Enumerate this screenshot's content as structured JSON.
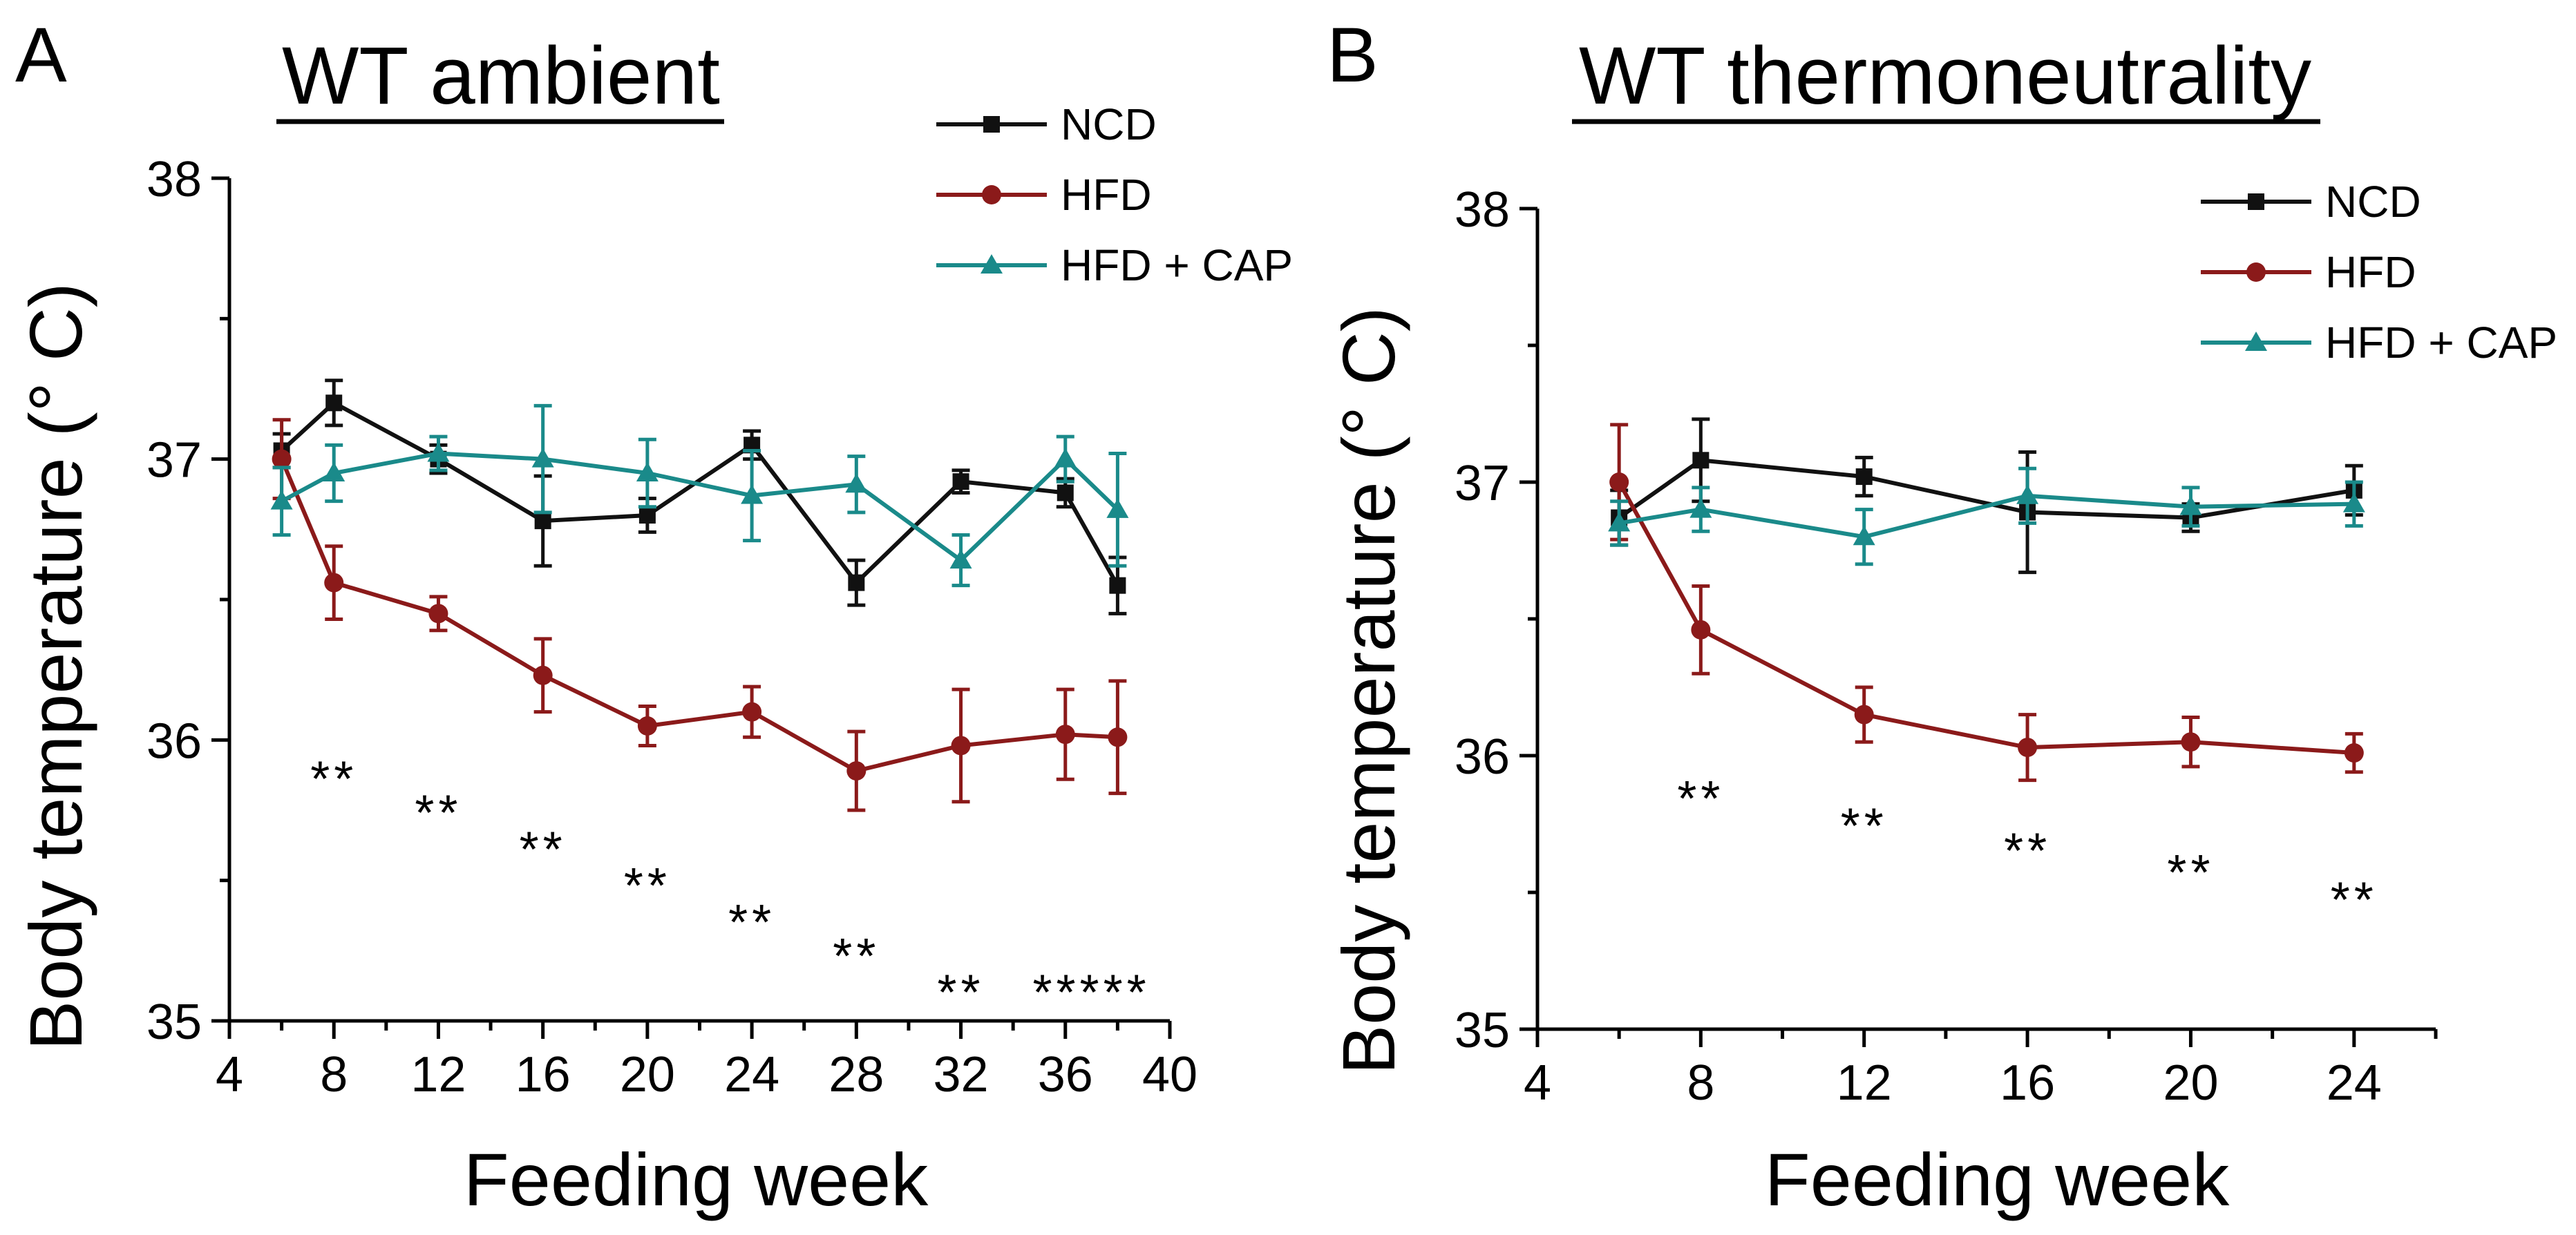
{
  "figure": {
    "panels": [
      {
        "letter": "A",
        "title": "WT ambient",
        "xlabel": "Feeding week",
        "ylabel": "Body temperature (° C)",
        "x_ticks": [
          "4",
          "8",
          "12",
          "16",
          "20",
          "24",
          "28",
          "32",
          "36",
          "40"
        ],
        "y_ticks": [
          "35",
          "36",
          "37",
          "38"
        ]
      },
      {
        "letter": "B",
        "title": "WT thermoneutrality",
        "xlabel": "Feeding week",
        "ylabel": "Body temperature (° C)",
        "x_ticks": [
          "4",
          "8",
          "12",
          "16",
          "20",
          "24"
        ],
        "y_ticks": [
          "35",
          "36",
          "37",
          "38"
        ]
      }
    ],
    "colors": {
      "NCD": "#111111",
      "HFD": "#8b1a1a",
      "HFD + CAP": "#1a8a8a"
    }
  },
  "chart_data": [
    {
      "type": "line",
      "title": "WT ambient",
      "xlabel": "Feeding week",
      "ylabel": "Body temperature (° C)",
      "xlim": [
        4,
        40
      ],
      "ylim": [
        35,
        38
      ],
      "x_ticks": [
        4,
        8,
        12,
        16,
        20,
        24,
        28,
        32,
        36,
        40
      ],
      "y_ticks": [
        35,
        36,
        37,
        38
      ],
      "legend": "top-right",
      "series": [
        {
          "name": "NCD",
          "marker": "square",
          "x": [
            6,
            8,
            12,
            16,
            20,
            24,
            28,
            32,
            36,
            38
          ],
          "values": [
            37.03,
            37.2,
            37.0,
            36.78,
            36.8,
            37.05,
            36.56,
            36.92,
            36.88,
            36.55
          ],
          "errors": [
            0.06,
            0.08,
            0.05,
            0.16,
            0.06,
            0.05,
            0.08,
            0.04,
            0.05,
            0.1
          ]
        },
        {
          "name": "HFD",
          "marker": "circle",
          "x": [
            6,
            8,
            12,
            16,
            20,
            24,
            28,
            32,
            36,
            38
          ],
          "values": [
            37.0,
            36.56,
            36.45,
            36.23,
            36.05,
            36.1,
            35.89,
            35.98,
            36.02,
            36.01
          ],
          "errors": [
            0.14,
            0.13,
            0.06,
            0.13,
            0.07,
            0.09,
            0.14,
            0.2,
            0.16,
            0.2
          ]
        },
        {
          "name": "HFD + CAP",
          "marker": "triangle",
          "x": [
            6,
            8,
            12,
            16,
            20,
            24,
            28,
            32,
            36,
            38
          ],
          "values": [
            36.85,
            36.95,
            37.02,
            37.0,
            36.95,
            36.87,
            36.91,
            36.64,
            37.0,
            36.82
          ],
          "errors": [
            0.12,
            0.1,
            0.06,
            0.19,
            0.12,
            0.16,
            0.1,
            0.09,
            0.08,
            0.2
          ]
        }
      ],
      "annotations": [
        {
          "x": 8,
          "y": 35.8,
          "text": "**"
        },
        {
          "x": 12,
          "y": 35.68,
          "text": "**"
        },
        {
          "x": 16,
          "y": 35.55,
          "text": "**"
        },
        {
          "x": 20,
          "y": 35.42,
          "text": "**"
        },
        {
          "x": 24,
          "y": 35.29,
          "text": "**"
        },
        {
          "x": 28,
          "y": 35.17,
          "text": "**"
        },
        {
          "x": 32,
          "y": 35.04,
          "text": "**"
        },
        {
          "x": 37,
          "y": 35.04,
          "text": "*****"
        }
      ]
    },
    {
      "type": "line",
      "title": "WT thermoneutrality",
      "xlabel": "Feeding week",
      "ylabel": "Body temperature (° C)",
      "xlim": [
        4,
        26
      ],
      "ylim": [
        35,
        38
      ],
      "x_ticks": [
        4,
        8,
        12,
        16,
        20,
        24
      ],
      "y_ticks": [
        35,
        36,
        37,
        38
      ],
      "legend": "top-right",
      "series": [
        {
          "name": "NCD",
          "marker": "square",
          "x": [
            6,
            8,
            12,
            16,
            20,
            24
          ],
          "values": [
            36.87,
            37.08,
            37.02,
            36.89,
            36.87,
            36.97
          ],
          "errors": [
            0.1,
            0.15,
            0.07,
            0.22,
            0.05,
            0.09
          ]
        },
        {
          "name": "HFD",
          "marker": "circle",
          "x": [
            6,
            8,
            12,
            16,
            20,
            24
          ],
          "values": [
            37.0,
            36.46,
            36.15,
            36.03,
            36.05,
            36.01
          ],
          "errors": [
            0.21,
            0.16,
            0.1,
            0.12,
            0.09,
            0.07
          ]
        },
        {
          "name": "HFD + CAP",
          "marker": "triangle",
          "x": [
            6,
            8,
            12,
            16,
            20,
            24
          ],
          "values": [
            36.85,
            36.9,
            36.8,
            36.95,
            36.91,
            36.92
          ],
          "errors": [
            0.08,
            0.08,
            0.1,
            0.1,
            0.07,
            0.08
          ]
        }
      ],
      "annotations": [
        {
          "x": 8,
          "y": 35.78,
          "text": "**"
        },
        {
          "x": 12,
          "y": 35.68,
          "text": "**"
        },
        {
          "x": 16,
          "y": 35.59,
          "text": "**"
        },
        {
          "x": 20,
          "y": 35.51,
          "text": "**"
        },
        {
          "x": 24,
          "y": 35.41,
          "text": "**"
        }
      ]
    }
  ]
}
